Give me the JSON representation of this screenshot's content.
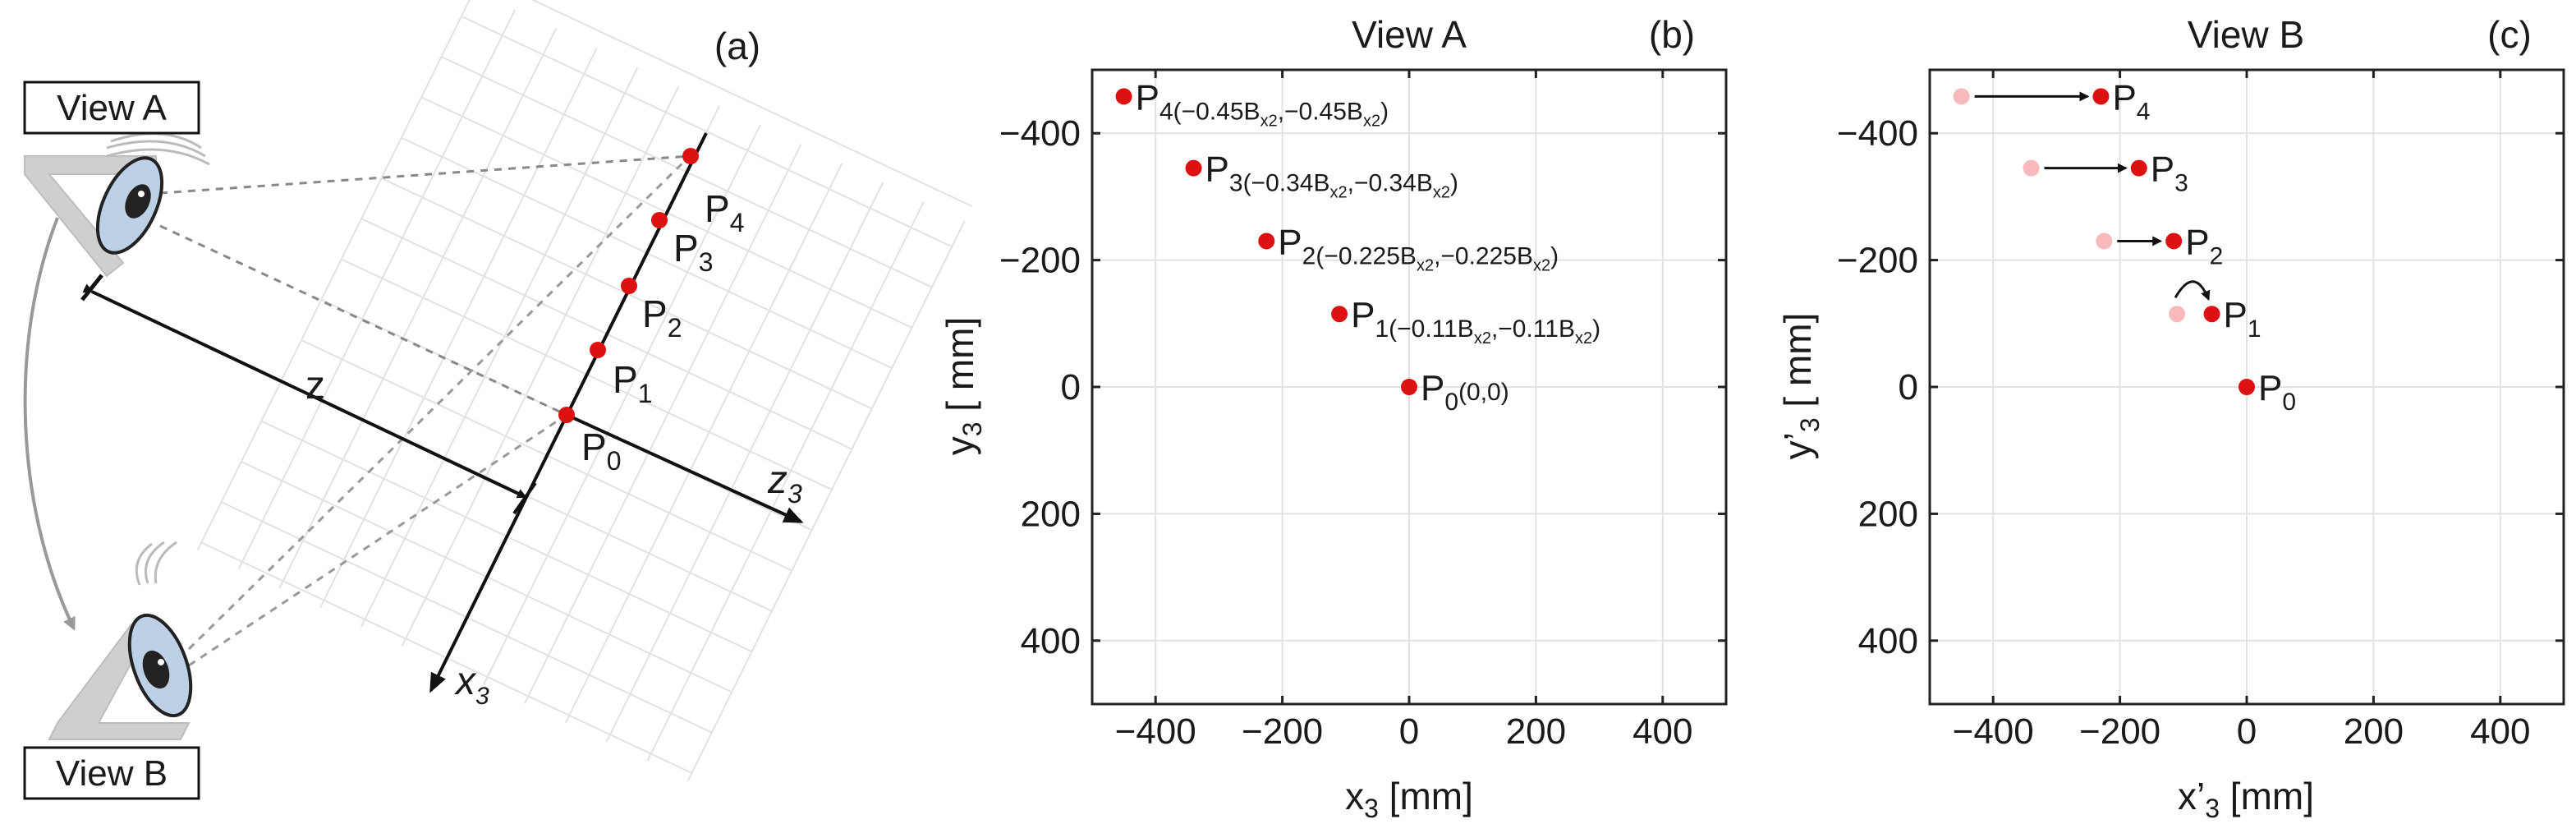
{
  "panel_a": {
    "label": "(a)",
    "view_a_label": "View A",
    "view_b_label": "View B",
    "z_label": "z",
    "z_axis_label": "z",
    "z_axis_sub": "3",
    "x_axis_label": "x",
    "x_axis_sub": "3",
    "points": [
      {
        "name": "P",
        "sub": "0"
      },
      {
        "name": "P",
        "sub": "1"
      },
      {
        "name": "P",
        "sub": "2"
      },
      {
        "name": "P",
        "sub": "3"
      },
      {
        "name": "P",
        "sub": "4"
      }
    ]
  },
  "panel_b": {
    "label": "(b)",
    "title": "View A",
    "xlabel_main": "x",
    "xlabel_sub": "3",
    "xlabel_unit": " [mm]",
    "ylabel_main": "y",
    "ylabel_sub": "3",
    "ylabel_unit": " [ mm]",
    "xticks": [
      "−400",
      "−200",
      "0",
      "200",
      "400"
    ],
    "yticks": [
      "−400",
      "−200",
      "0",
      "200",
      "400"
    ]
  },
  "panel_c": {
    "label": "(c)",
    "title": "View B",
    "xlabel_main": "x’",
    "xlabel_sub": "3",
    "xlabel_unit": " [mm]",
    "ylabel_main": "y’",
    "ylabel_sub": "3",
    "ylabel_unit": " [ mm]",
    "xticks": [
      "−400",
      "−200",
      "0",
      "200",
      "400"
    ],
    "yticks": [
      "−400",
      "−200",
      "0",
      "200",
      "400"
    ]
  },
  "chart_data": [
    {
      "type": "scatter",
      "title": "View A",
      "xlabel": "x3 [mm]",
      "ylabel": "y3 [ mm]",
      "xlim": [
        -500,
        500
      ],
      "ylim": [
        -500,
        500
      ],
      "y_inverted": true,
      "grid": true,
      "series": [
        {
          "name": "points",
          "color": "#dd1111",
          "points": [
            {
              "label": "P",
              "sub": "0",
              "x": 0,
              "y": 0,
              "coord": "(0,0)"
            },
            {
              "label": "P",
              "sub": "1",
              "x": -110,
              "y": -115,
              "coord_parts": [
                "(−0.11B",
                "x2",
                ",−0.11B",
                "x2",
                ")"
              ]
            },
            {
              "label": "P",
              "sub": "2",
              "x": -225,
              "y": -230,
              "coord_parts": [
                "(−0.225B",
                "x2",
                ",−0.225B",
                "x2",
                ")"
              ]
            },
            {
              "label": "P",
              "sub": "3",
              "x": -340,
              "y": -345,
              "coord_parts": [
                "(−0.34B",
                "x2",
                ",−0.34B",
                "x2",
                ")"
              ]
            },
            {
              "label": "P",
              "sub": "4",
              "x": -450,
              "y": -458,
              "coord_parts": [
                "(−0.45B",
                "x2",
                ",−0.45B",
                "x2",
                ")"
              ]
            }
          ]
        }
      ]
    },
    {
      "type": "scatter",
      "title": "View B",
      "xlabel": "x'3 [mm]",
      "ylabel": "y'3 [ mm]",
      "xlim": [
        -500,
        500
      ],
      "ylim": [
        -500,
        500
      ],
      "y_inverted": true,
      "grid": true,
      "series": [
        {
          "name": "original",
          "color": "#f7b9b9",
          "points": [
            {
              "x": -110,
              "y": -115
            },
            {
              "x": -225,
              "y": -230
            },
            {
              "x": -340,
              "y": -345
            },
            {
              "x": -450,
              "y": -458
            }
          ]
        },
        {
          "name": "shifted",
          "color": "#dd1111",
          "points": [
            {
              "label": "P",
              "sub": "0",
              "x": 0,
              "y": 0
            },
            {
              "label": "P",
              "sub": "1",
              "x": -55,
              "y": -115
            },
            {
              "label": "P",
              "sub": "2",
              "x": -115,
              "y": -230
            },
            {
              "label": "P",
              "sub": "3",
              "x": -170,
              "y": -345
            },
            {
              "label": "P",
              "sub": "4",
              "x": -230,
              "y": -458
            }
          ]
        }
      ]
    }
  ]
}
